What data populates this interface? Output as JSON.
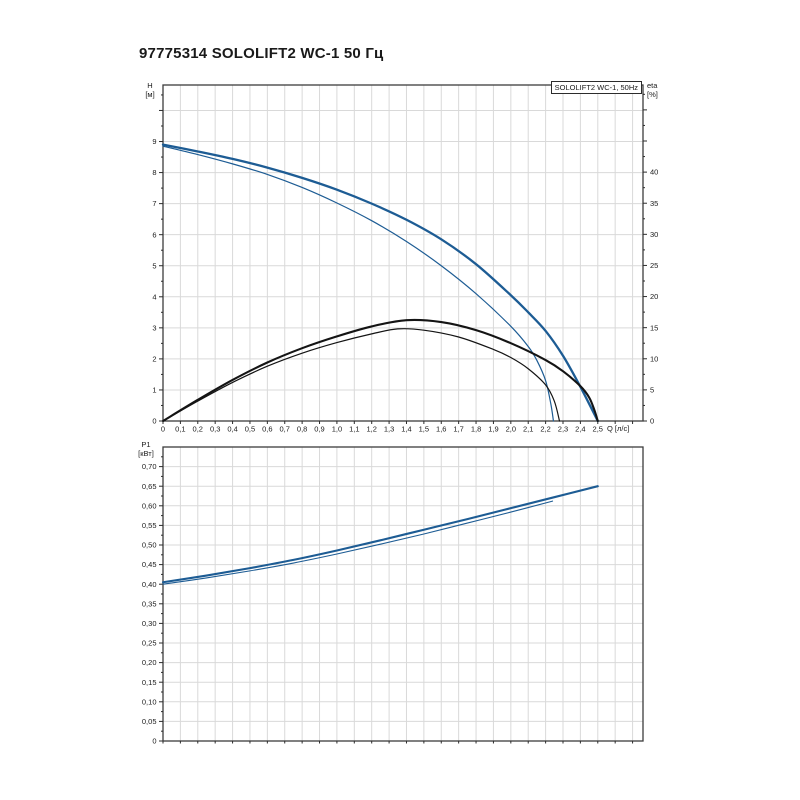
{
  "title": "97775314 SOLOLIFT2 WC-1 50 Гц",
  "colors": {
    "curve_blue": "#1d5c94",
    "curve_black": "#141414",
    "grid": "#d9d9d9",
    "frame": "#3c3c3c",
    "tick": "#2c2c2c",
    "text": "#1a1a1a"
  },
  "chart_data": [
    {
      "type": "line",
      "title": "97775314 SOLOLIFT2 WC-1 50 Гц",
      "legend": "SOLOLIFT2 WC-1, 50Hz",
      "grid": true,
      "legend_position": "top-right",
      "x": {
        "label": "Q [л/с]",
        "min": 0,
        "max": 2.76,
        "tick_step": 0.1,
        "tick_labels": [
          "0",
          "0,1",
          "0,2",
          "0,3",
          "0,4",
          "0,5",
          "0,6",
          "0,7",
          "0,8",
          "0,9",
          "1,0",
          "1,1",
          "1,2",
          "1,3",
          "1,4",
          "1,5",
          "1,6",
          "1,7",
          "1,8",
          "1,9",
          "2,0",
          "2,1",
          "2,2",
          "2,3",
          "2,4",
          "2,5"
        ]
      },
      "y_left": {
        "label": "H",
        "unit": "[м]",
        "min": 0,
        "max": 10.82,
        "tick_step": 1,
        "tick_labels": [
          "0",
          "1",
          "2",
          "3",
          "4",
          "5",
          "6",
          "7",
          "8",
          "9"
        ]
      },
      "y_right": {
        "label": "eta",
        "unit": "[%]",
        "min": 0,
        "max": 54,
        "tick_step": 5,
        "tick_labels": [
          "0",
          "5",
          "10",
          "15",
          "20",
          "25",
          "30",
          "35",
          "40"
        ]
      },
      "series": [
        {
          "name": "head-curve-max",
          "axis": "left",
          "color": "#1d5c94",
          "width": 2.3,
          "points": [
            [
              0,
              8.9
            ],
            [
              0.2,
              8.68
            ],
            [
              0.4,
              8.44
            ],
            [
              0.6,
              8.16
            ],
            [
              0.8,
              7.83
            ],
            [
              1.0,
              7.45
            ],
            [
              1.2,
              7.0
            ],
            [
              1.4,
              6.48
            ],
            [
              1.6,
              5.85
            ],
            [
              1.8,
              5.05
            ],
            [
              2.0,
              4.05
            ],
            [
              2.1,
              3.5
            ],
            [
              2.2,
              2.9
            ],
            [
              2.3,
              2.1
            ],
            [
              2.4,
              1.1
            ],
            [
              2.5,
              0
            ]
          ]
        },
        {
          "name": "head-curve-min",
          "axis": "left",
          "color": "#1d5c94",
          "width": 1.2,
          "points": [
            [
              0,
              8.85
            ],
            [
              0.2,
              8.58
            ],
            [
              0.4,
              8.28
            ],
            [
              0.6,
              7.94
            ],
            [
              0.8,
              7.52
            ],
            [
              1.0,
              7.02
            ],
            [
              1.2,
              6.45
            ],
            [
              1.4,
              5.78
            ],
            [
              1.6,
              5.0
            ],
            [
              1.8,
              4.1
            ],
            [
              2.0,
              3.05
            ],
            [
              2.1,
              2.4
            ],
            [
              2.15,
              1.95
            ],
            [
              2.2,
              1.3
            ],
            [
              2.23,
              0.55
            ],
            [
              2.245,
              0
            ]
          ]
        },
        {
          "name": "eta-curve-max",
          "axis": "right",
          "color": "#141414",
          "width": 2.1,
          "points": [
            [
              0,
              0
            ],
            [
              0.2,
              3.4
            ],
            [
              0.4,
              6.6
            ],
            [
              0.6,
              9.4
            ],
            [
              0.8,
              11.7
            ],
            [
              1.0,
              13.6
            ],
            [
              1.2,
              15.2
            ],
            [
              1.4,
              16.2
            ],
            [
              1.6,
              15.9
            ],
            [
              1.8,
              14.6
            ],
            [
              2.0,
              12.5
            ],
            [
              2.2,
              9.8
            ],
            [
              2.3,
              8.0
            ],
            [
              2.4,
              5.6
            ],
            [
              2.45,
              3.8
            ],
            [
              2.48,
              1.8
            ],
            [
              2.5,
              0
            ]
          ]
        },
        {
          "name": "eta-curve-min",
          "axis": "right",
          "color": "#141414",
          "width": 1.2,
          "points": [
            [
              0,
              0
            ],
            [
              0.2,
              3.2
            ],
            [
              0.4,
              6.2
            ],
            [
              0.6,
              8.8
            ],
            [
              0.8,
              10.9
            ],
            [
              1.0,
              12.6
            ],
            [
              1.2,
              14.0
            ],
            [
              1.35,
              14.8
            ],
            [
              1.5,
              14.6
            ],
            [
              1.7,
              13.5
            ],
            [
              1.9,
              11.5
            ],
            [
              2.0,
              10.2
            ],
            [
              2.1,
              8.4
            ],
            [
              2.2,
              5.8
            ],
            [
              2.25,
              3.2
            ],
            [
              2.28,
              0
            ]
          ]
        }
      ]
    },
    {
      "type": "line",
      "title": "",
      "grid": true,
      "x": {
        "label": "",
        "min": 0,
        "max": 2.76,
        "tick_step": 0.1,
        "tick_labels": []
      },
      "y": {
        "label": "P1",
        "unit": "[кВт]",
        "min": 0,
        "max": 0.75,
        "tick_step": 0.05,
        "tick_labels": [
          "0",
          "0,05",
          "0,10",
          "0,15",
          "0,20",
          "0,25",
          "0,30",
          "0,35",
          "0,40",
          "0,45",
          "0,50",
          "0,55",
          "0,60",
          "0,65",
          "0,70"
        ]
      },
      "series": [
        {
          "name": "power-curve-max",
          "color": "#1d5c94",
          "width": 2.1,
          "points": [
            [
              0,
              0.405
            ],
            [
              0.25,
              0.422
            ],
            [
              0.5,
              0.441
            ],
            [
              0.75,
              0.462
            ],
            [
              1.0,
              0.486
            ],
            [
              1.25,
              0.512
            ],
            [
              1.5,
              0.539
            ],
            [
              1.75,
              0.566
            ],
            [
              2.0,
              0.594
            ],
            [
              2.25,
              0.622
            ],
            [
              2.5,
              0.65
            ]
          ]
        },
        {
          "name": "power-curve-min",
          "color": "#1d5c94",
          "width": 1.1,
          "points": [
            [
              0,
              0.4
            ],
            [
              0.25,
              0.416
            ],
            [
              0.5,
              0.434
            ],
            [
              0.75,
              0.454
            ],
            [
              1.0,
              0.477
            ],
            [
              1.25,
              0.502
            ],
            [
              1.5,
              0.528
            ],
            [
              1.75,
              0.556
            ],
            [
              2.0,
              0.584
            ],
            [
              2.24,
              0.612
            ]
          ]
        }
      ]
    }
  ]
}
